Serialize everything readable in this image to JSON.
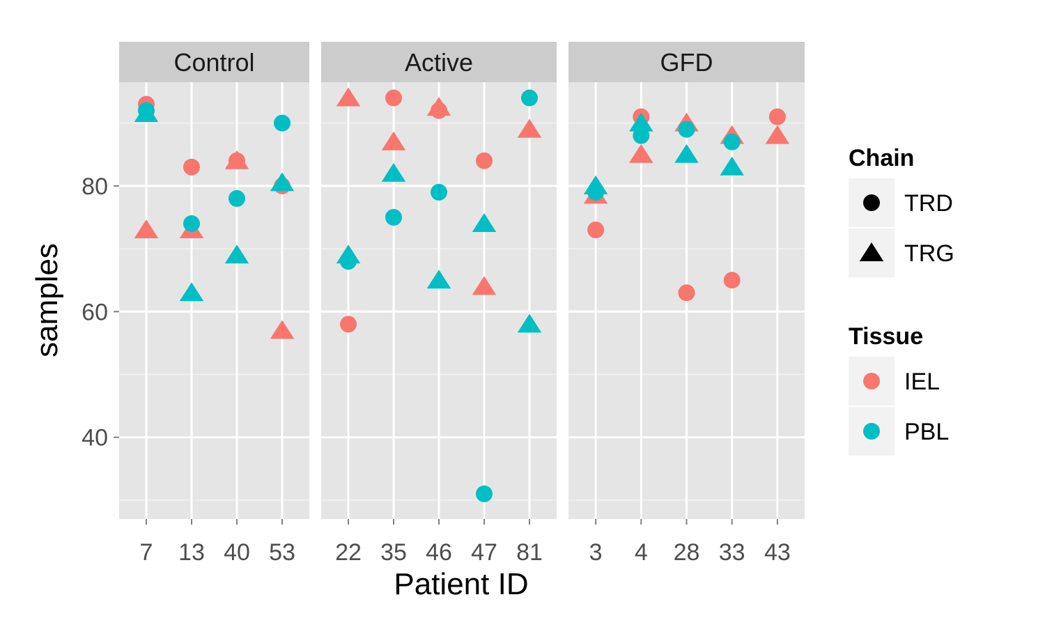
{
  "chart_data": {
    "type": "scatter",
    "xlabel": "Patient ID",
    "ylabel": "samples",
    "yticks": [
      "40",
      "60",
      "80"
    ],
    "yticks_values": [
      40,
      60,
      80
    ],
    "ylim": [
      27,
      96.5
    ],
    "grid": true,
    "legend_position": "right",
    "colors": {
      "IEL": "#F8766D",
      "PBL": "#00BFC4"
    },
    "legends": [
      {
        "title": "Chain",
        "items": [
          {
            "label": "TRD",
            "shape": "circle"
          },
          {
            "label": "TRG",
            "shape": "triangle"
          }
        ]
      },
      {
        "title": "Tissue",
        "items": [
          {
            "label": "IEL",
            "color": "#F8766D"
          },
          {
            "label": "PBL",
            "color": "#00BFC4"
          }
        ]
      }
    ],
    "panels": [
      {
        "label": "Control",
        "categories": [
          "7",
          "13",
          "40",
          "53"
        ],
        "points": [
          {
            "x": "7",
            "tissue": "IEL",
            "chain": "TRD",
            "y": 93
          },
          {
            "x": "7",
            "tissue": "PBL",
            "chain": "TRD",
            "y": 92
          },
          {
            "x": "7",
            "tissue": "PBL",
            "chain": "TRG",
            "y": 91.5
          },
          {
            "x": "7",
            "tissue": "IEL",
            "chain": "TRG",
            "y": 73
          },
          {
            "x": "13",
            "tissue": "IEL",
            "chain": "TRD",
            "y": 83
          },
          {
            "x": "13",
            "tissue": "IEL",
            "chain": "TRG",
            "y": 73
          },
          {
            "x": "13",
            "tissue": "PBL",
            "chain": "TRD",
            "y": 74
          },
          {
            "x": "13",
            "tissue": "PBL",
            "chain": "TRG",
            "y": 63
          },
          {
            "x": "40",
            "tissue": "IEL",
            "chain": "TRG",
            "y": 84
          },
          {
            "x": "40",
            "tissue": "IEL",
            "chain": "TRD",
            "y": 84
          },
          {
            "x": "40",
            "tissue": "PBL",
            "chain": "TRD",
            "y": 78
          },
          {
            "x": "40",
            "tissue": "PBL",
            "chain": "TRG",
            "y": 69
          },
          {
            "x": "53",
            "tissue": "PBL",
            "chain": "TRD",
            "y": 90
          },
          {
            "x": "53",
            "tissue": "IEL",
            "chain": "TRD",
            "y": 80
          },
          {
            "x": "53",
            "tissue": "PBL",
            "chain": "TRG",
            "y": 80.5
          },
          {
            "x": "53",
            "tissue": "IEL",
            "chain": "TRG",
            "y": 57
          }
        ]
      },
      {
        "label": "Active",
        "categories": [
          "22",
          "35",
          "46",
          "47",
          "81"
        ],
        "points": [
          {
            "x": "22",
            "tissue": "IEL",
            "chain": "TRG",
            "y": 94
          },
          {
            "x": "22",
            "tissue": "PBL",
            "chain": "TRG",
            "y": 69
          },
          {
            "x": "22",
            "tissue": "PBL",
            "chain": "TRD",
            "y": 68
          },
          {
            "x": "22",
            "tissue": "IEL",
            "chain": "TRD",
            "y": 58
          },
          {
            "x": "35",
            "tissue": "IEL",
            "chain": "TRD",
            "y": 94
          },
          {
            "x": "35",
            "tissue": "IEL",
            "chain": "TRG",
            "y": 87
          },
          {
            "x": "35",
            "tissue": "PBL",
            "chain": "TRG",
            "y": 82
          },
          {
            "x": "35",
            "tissue": "PBL",
            "chain": "TRD",
            "y": 75
          },
          {
            "x": "46",
            "tissue": "IEL",
            "chain": "TRG",
            "y": 92.5
          },
          {
            "x": "46",
            "tissue": "IEL",
            "chain": "TRD",
            "y": 92
          },
          {
            "x": "46",
            "tissue": "PBL",
            "chain": "TRD",
            "y": 79
          },
          {
            "x": "46",
            "tissue": "PBL",
            "chain": "TRG",
            "y": 65
          },
          {
            "x": "47",
            "tissue": "IEL",
            "chain": "TRD",
            "y": 84
          },
          {
            "x": "47",
            "tissue": "PBL",
            "chain": "TRG",
            "y": 74
          },
          {
            "x": "47",
            "tissue": "IEL",
            "chain": "TRG",
            "y": 64
          },
          {
            "x": "47",
            "tissue": "PBL",
            "chain": "TRD",
            "y": 31
          },
          {
            "x": "81",
            "tissue": "PBL",
            "chain": "TRD",
            "y": 94
          },
          {
            "x": "81",
            "tissue": "IEL",
            "chain": "TRG",
            "y": 89
          },
          {
            "x": "81",
            "tissue": "PBL",
            "chain": "TRG",
            "y": 58
          }
        ]
      },
      {
        "label": "GFD",
        "categories": [
          "3",
          "4",
          "28",
          "33",
          "43"
        ],
        "points": [
          {
            "x": "3",
            "tissue": "IEL",
            "chain": "TRG",
            "y": 78.5
          },
          {
            "x": "3",
            "tissue": "PBL",
            "chain": "TRG",
            "y": 80
          },
          {
            "x": "3",
            "tissue": "PBL",
            "chain": "TRD",
            "y": 79
          },
          {
            "x": "3",
            "tissue": "IEL",
            "chain": "TRD",
            "y": 73
          },
          {
            "x": "4",
            "tissue": "IEL",
            "chain": "TRD",
            "y": 91
          },
          {
            "x": "4",
            "tissue": "PBL",
            "chain": "TRG",
            "y": 90
          },
          {
            "x": "4",
            "tissue": "PBL",
            "chain": "TRD",
            "y": 88
          },
          {
            "x": "4",
            "tissue": "IEL",
            "chain": "TRG",
            "y": 85
          },
          {
            "x": "28",
            "tissue": "IEL",
            "chain": "TRG",
            "y": 90
          },
          {
            "x": "28",
            "tissue": "PBL",
            "chain": "TRD",
            "y": 89
          },
          {
            "x": "28",
            "tissue": "PBL",
            "chain": "TRG",
            "y": 85
          },
          {
            "x": "28",
            "tissue": "IEL",
            "chain": "TRD",
            "y": 63
          },
          {
            "x": "33",
            "tissue": "IEL",
            "chain": "TRG",
            "y": 88
          },
          {
            "x": "33",
            "tissue": "PBL",
            "chain": "TRD",
            "y": 87
          },
          {
            "x": "33",
            "tissue": "PBL",
            "chain": "TRG",
            "y": 83
          },
          {
            "x": "33",
            "tissue": "IEL",
            "chain": "TRD",
            "y": 65
          },
          {
            "x": "43",
            "tissue": "IEL",
            "chain": "TRD",
            "y": 91
          },
          {
            "x": "43",
            "tissue": "IEL",
            "chain": "TRG",
            "y": 88
          }
        ]
      }
    ]
  }
}
